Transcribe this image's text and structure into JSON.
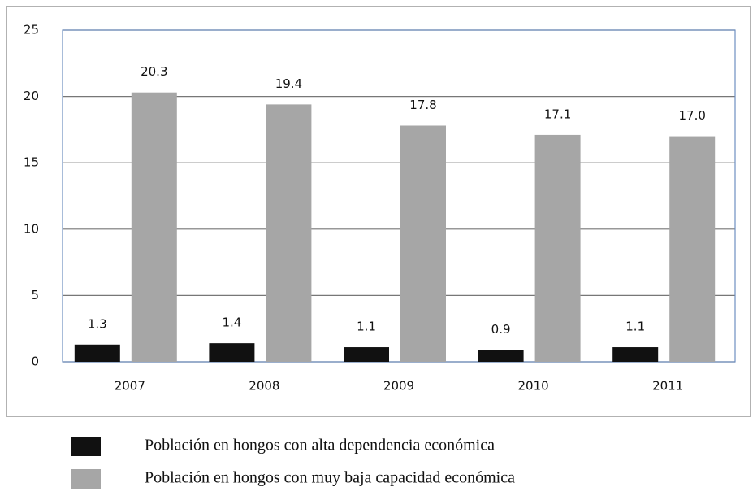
{
  "chart_data": {
    "type": "bar",
    "categories": [
      "2007",
      "2008",
      "2009",
      "2010",
      "2011"
    ],
    "series": [
      {
        "name": "Población en hongos con alta dependencia económica",
        "color": "#111111",
        "values": [
          1.3,
          1.4,
          1.1,
          0.9,
          1.1
        ],
        "value_labels": [
          "1.3",
          "1.4",
          "1.1",
          "0.9",
          "1.1"
        ]
      },
      {
        "name": "Población en hongos con muy baja capacidad económica",
        "color": "#a6a6a6",
        "values": [
          20.3,
          19.4,
          17.8,
          17.1,
          17.0
        ],
        "value_labels": [
          "20.3",
          "19.4",
          "17.8",
          "17.1",
          "17.0"
        ]
      }
    ],
    "ylim": [
      0,
      25
    ],
    "yticks": [
      0,
      5,
      10,
      15,
      20,
      25
    ],
    "grid": true
  }
}
